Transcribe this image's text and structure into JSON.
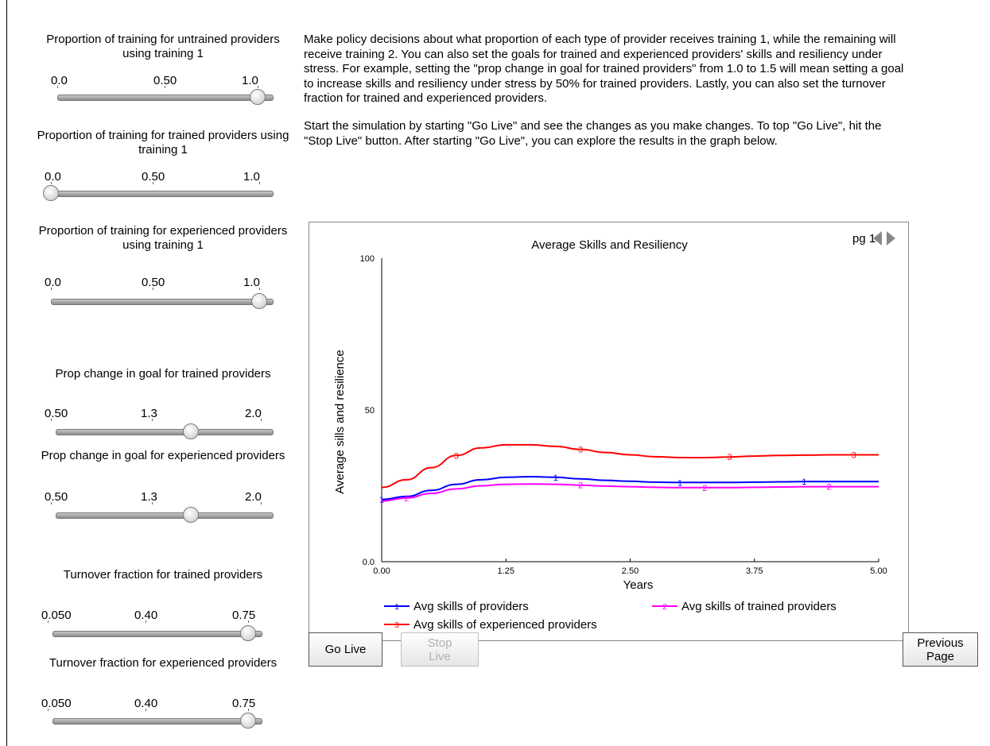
{
  "sliders": [
    {
      "title": "Proportion of training for untrained providers using training 1",
      "ticks": [
        "0.0",
        "0.50",
        "1.0"
      ],
      "min": 0,
      "max": 1,
      "value": 1.0
    },
    {
      "title": "Proportion of training for trained providers using training 1",
      "ticks": [
        "0.0",
        "0.50",
        "1.0"
      ],
      "min": 0,
      "max": 1,
      "value": 0.0
    },
    {
      "title": "Proportion of training for experienced providers using training 1",
      "ticks": [
        "0.0",
        "0.50",
        "1.0"
      ],
      "min": 0,
      "max": 1,
      "value": 1.0
    },
    {
      "title": "Prop change in goal for trained providers",
      "ticks": [
        "0.50",
        "1.3",
        "2.0"
      ],
      "min": 0.5,
      "max": 2.0,
      "value": 1.5
    },
    {
      "title": "Prop change in goal for experienced providers",
      "ticks": [
        "0.50",
        "1.3",
        "2.0"
      ],
      "min": 0.5,
      "max": 2.0,
      "value": 1.5
    },
    {
      "title": "Turnover fraction for trained providers",
      "ticks": [
        "0.050",
        "0.40",
        "0.75"
      ],
      "min": 0.05,
      "max": 0.75,
      "value": 0.75
    },
    {
      "title": "Turnover fraction for experienced providers",
      "ticks": [
        "0.050",
        "0.40",
        "0.75"
      ],
      "min": 0.05,
      "max": 0.75,
      "value": 0.75
    }
  ],
  "intro": {
    "p1": "Make policy decisions about what proportion of each type of provider receives training 1, while the remaining will receive training 2. You can also set the goals for trained and experienced providers' skills and resiliency under stress. For example, setting the \"prop change in goal for trained providers\" from 1.0 to 1.5 will mean setting a goal to increase skills and resiliency under stress by 50% for trained providers. Lastly, you can also set the turnover fraction for trained and experienced providers.",
    "p2": "Start the simulation by starting \"Go Live\" and see the changes as you make changes. To top \"Go Live\", hit the \"Stop Live\" button. After starting \"Go Live\", you can explore the results in the graph below."
  },
  "pager": {
    "label": "pg 1"
  },
  "buttons": {
    "go_live": "Go Live",
    "stop_live": "Stop Live",
    "previous_page": "Previous Page"
  },
  "colors": {
    "series1": "#0000ff",
    "series2": "#ff00ff",
    "series3": "#ff0000"
  },
  "chart_data": {
    "type": "line",
    "title": "Average Skills and Resiliency",
    "xlabel": "Years",
    "ylabel": "Average sills and resilience",
    "xlim": [
      0,
      5
    ],
    "ylim": [
      0,
      100
    ],
    "xticks": [
      "0.00",
      "1.25",
      "2.50",
      "3.75",
      "5.00"
    ],
    "yticks": [
      "0.0",
      "50",
      "100"
    ],
    "x": [
      0,
      0.25,
      0.5,
      0.75,
      1.0,
      1.25,
      1.5,
      1.75,
      2.0,
      2.25,
      2.5,
      2.75,
      3.0,
      3.25,
      3.5,
      3.75,
      4.0,
      4.25,
      4.5,
      4.75,
      5.0
    ],
    "series": [
      {
        "name": "Avg skills of providers",
        "marker": "1",
        "values": [
          20.5,
          21.5,
          23.5,
          25.5,
          27,
          27.8,
          28,
          27.8,
          27.3,
          26.8,
          26.5,
          26.2,
          26.1,
          26.1,
          26.1,
          26.2,
          26.3,
          26.4,
          26.4,
          26.4,
          26.4
        ]
      },
      {
        "name": "Avg skills of trained providers",
        "marker": "2",
        "values": [
          20,
          21,
          22.5,
          24,
          25,
          25.5,
          25.6,
          25.5,
          25.2,
          24.9,
          24.7,
          24.5,
          24.4,
          24.4,
          24.4,
          24.5,
          24.6,
          24.7,
          24.7,
          24.7,
          24.7
        ]
      },
      {
        "name": "Avg skills of experienced providers",
        "marker": "3",
        "values": [
          24.5,
          27,
          31,
          35,
          37.5,
          38.5,
          38.5,
          38,
          37,
          36,
          35.2,
          34.6,
          34.3,
          34.3,
          34.5,
          34.8,
          35,
          35.1,
          35.2,
          35.2,
          35.2
        ]
      }
    ],
    "legend": "bottom"
  }
}
